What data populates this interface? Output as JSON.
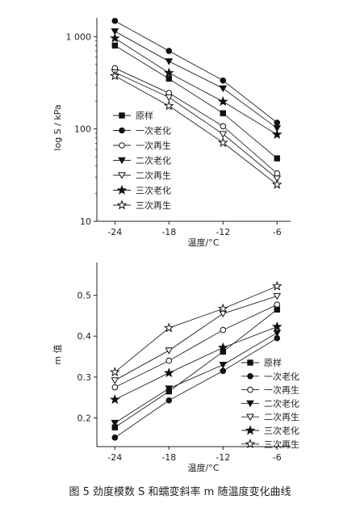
{
  "caption": "图 5 劲度模数 S 和蠕变斜率 m 随温度变化曲线",
  "chart_data": [
    {
      "type": "line",
      "yscale": "log",
      "xlabel": "温度/°C",
      "ylabel": "log S / kPa",
      "x": [
        -24,
        -18,
        -12,
        -6
      ],
      "x_tick_labels": [
        "-24",
        "-18",
        "-12",
        "-6"
      ],
      "xlim": [
        -26,
        -4.5
      ],
      "ylim": [
        10,
        1600
      ],
      "y_ticks": [
        10,
        100,
        1000
      ],
      "y_tick_labels": [
        "10",
        "100",
        "1 000"
      ],
      "legend_position": "lower-left",
      "series": [
        {
          "name": "原样",
          "marker": "square-filled",
          "values": [
            800,
            350,
            148,
            48
          ]
        },
        {
          "name": "一次老化",
          "marker": "circle-filled",
          "values": [
            1480,
            700,
            335,
            117
          ]
        },
        {
          "name": "一次再生",
          "marker": "circle-open",
          "values": [
            455,
            245,
            107,
            33
          ]
        },
        {
          "name": "二次老化",
          "marker": "triangle-down-filled",
          "values": [
            1140,
            540,
            275,
            102
          ]
        },
        {
          "name": "二次再生",
          "marker": "triangle-down-open",
          "values": [
            410,
            220,
            88,
            29
          ]
        },
        {
          "name": "三次老化",
          "marker": "star-filled",
          "values": [
            960,
            405,
            198,
            87
          ]
        },
        {
          "name": "三次再生",
          "marker": "star-open",
          "values": [
            375,
            178,
            71,
            25
          ]
        }
      ]
    },
    {
      "type": "line",
      "xlabel": "温度/°C",
      "ylabel": "m 值",
      "x": [
        -24,
        -18,
        -12,
        -6
      ],
      "x_tick_labels": [
        "-24",
        "-18",
        "-12",
        "-6"
      ],
      "xlim": [
        -26,
        -4.5
      ],
      "ylim": [
        0.13,
        0.58
      ],
      "y_ticks": [
        0.2,
        0.3,
        0.4,
        0.5
      ],
      "y_tick_labels": [
        "0.2",
        "0.3",
        "0.4",
        "0.5"
      ],
      "legend_position": "lower-right",
      "series": [
        {
          "name": "原样",
          "marker": "square-filled",
          "values": [
            0.177,
            0.265,
            0.362,
            0.465
          ]
        },
        {
          "name": "一次老化",
          "marker": "circle-filled",
          "values": [
            0.152,
            0.243,
            0.315,
            0.395
          ]
        },
        {
          "name": "一次再生",
          "marker": "circle-open",
          "values": [
            0.275,
            0.34,
            0.415,
            0.477
          ]
        },
        {
          "name": "二次老化",
          "marker": "triangle-down-filled",
          "values": [
            0.188,
            0.272,
            0.33,
            0.408
          ]
        },
        {
          "name": "二次再生",
          "marker": "triangle-down-open",
          "values": [
            0.292,
            0.365,
            0.455,
            0.498
          ]
        },
        {
          "name": "三次老化",
          "marker": "star-filled",
          "values": [
            0.245,
            0.31,
            0.372,
            0.423
          ]
        },
        {
          "name": "三次再生",
          "marker": "star-open",
          "values": [
            0.312,
            0.42,
            0.467,
            0.522
          ]
        }
      ]
    }
  ]
}
